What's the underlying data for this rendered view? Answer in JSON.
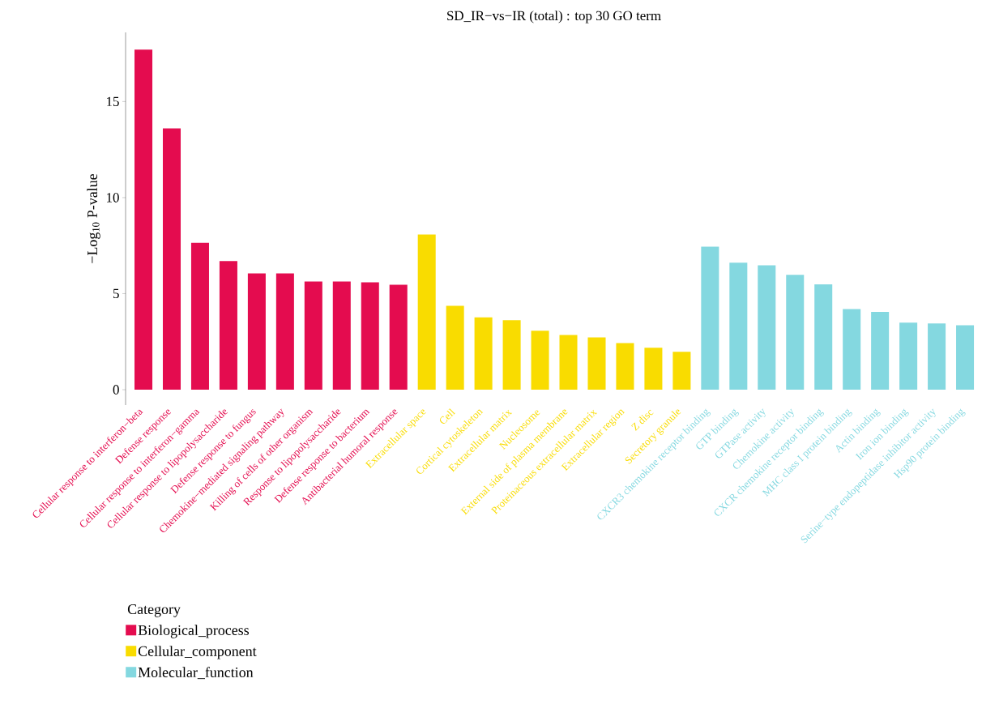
{
  "chart_data": {
    "type": "bar",
    "title": "SD_IR−vs−IR (total) : top 30 GO term",
    "ylabel": "−Log$_{10}$ P-value",
    "categories": [
      "Cellular response to interferon−beta",
      "Defense response",
      "Cellular response to interferon−gamma",
      "Cellular response to lipopolysaccharide",
      "Defense response to fungus",
      "Chemokine−mediated signaling pathway",
      "Killing of cells of other organism",
      "Response to lipopolysaccharide",
      "Defense response to bacterium",
      "Antibacterial humoral response",
      "Extracellular space",
      "Cell",
      "Cortical cytoskeleton",
      "Extracellular matrix",
      "Nucleosome",
      "External side of plasma membrane",
      "Proteinaceous extracellular matrix",
      "Extracellular region",
      "Z disc",
      "Secretory granule",
      "CXCR3 chemokine receptor binding",
      "GTP binding",
      "GTPase activity",
      "Chemokine activity",
      "CXCR chemokine receptor binding",
      "MHC class I protein binding",
      "Actin binding",
      "Iron ion binding",
      "Serine−type endopeptidase inhibitor activity",
      "Hsp90 protein binding"
    ],
    "series": [
      {
        "name": "Biological_process",
        "color": "#e40c4f",
        "values": [
          17.7,
          13.6,
          7.65,
          6.7,
          6.05,
          6.05,
          5.63,
          5.63,
          5.59,
          5.46,
          null,
          null,
          null,
          null,
          null,
          null,
          null,
          null,
          null,
          null,
          null,
          null,
          null,
          null,
          null,
          null,
          null,
          null,
          null,
          null
        ]
      },
      {
        "name": "Cellular_component",
        "color": "#f9dc00",
        "values": [
          null,
          null,
          null,
          null,
          null,
          null,
          null,
          null,
          null,
          null,
          8.08,
          4.37,
          3.77,
          3.62,
          3.07,
          2.85,
          2.72,
          2.43,
          2.18,
          1.97,
          null,
          null,
          null,
          null,
          null,
          null,
          null,
          null,
          null,
          null
        ]
      },
      {
        "name": "Molecular_function",
        "color": "#84d8e0",
        "values": [
          null,
          null,
          null,
          null,
          null,
          null,
          null,
          null,
          null,
          null,
          null,
          null,
          null,
          null,
          null,
          null,
          null,
          null,
          null,
          null,
          7.45,
          6.61,
          6.48,
          5.98,
          5.48,
          4.2,
          4.05,
          3.49,
          3.45,
          3.35
        ]
      }
    ],
    "ylim": [
      -0.8,
      18.6
    ],
    "yticks": [
      0,
      5,
      10,
      15
    ],
    "legend": "bottom left",
    "legend_title": "Category"
  }
}
